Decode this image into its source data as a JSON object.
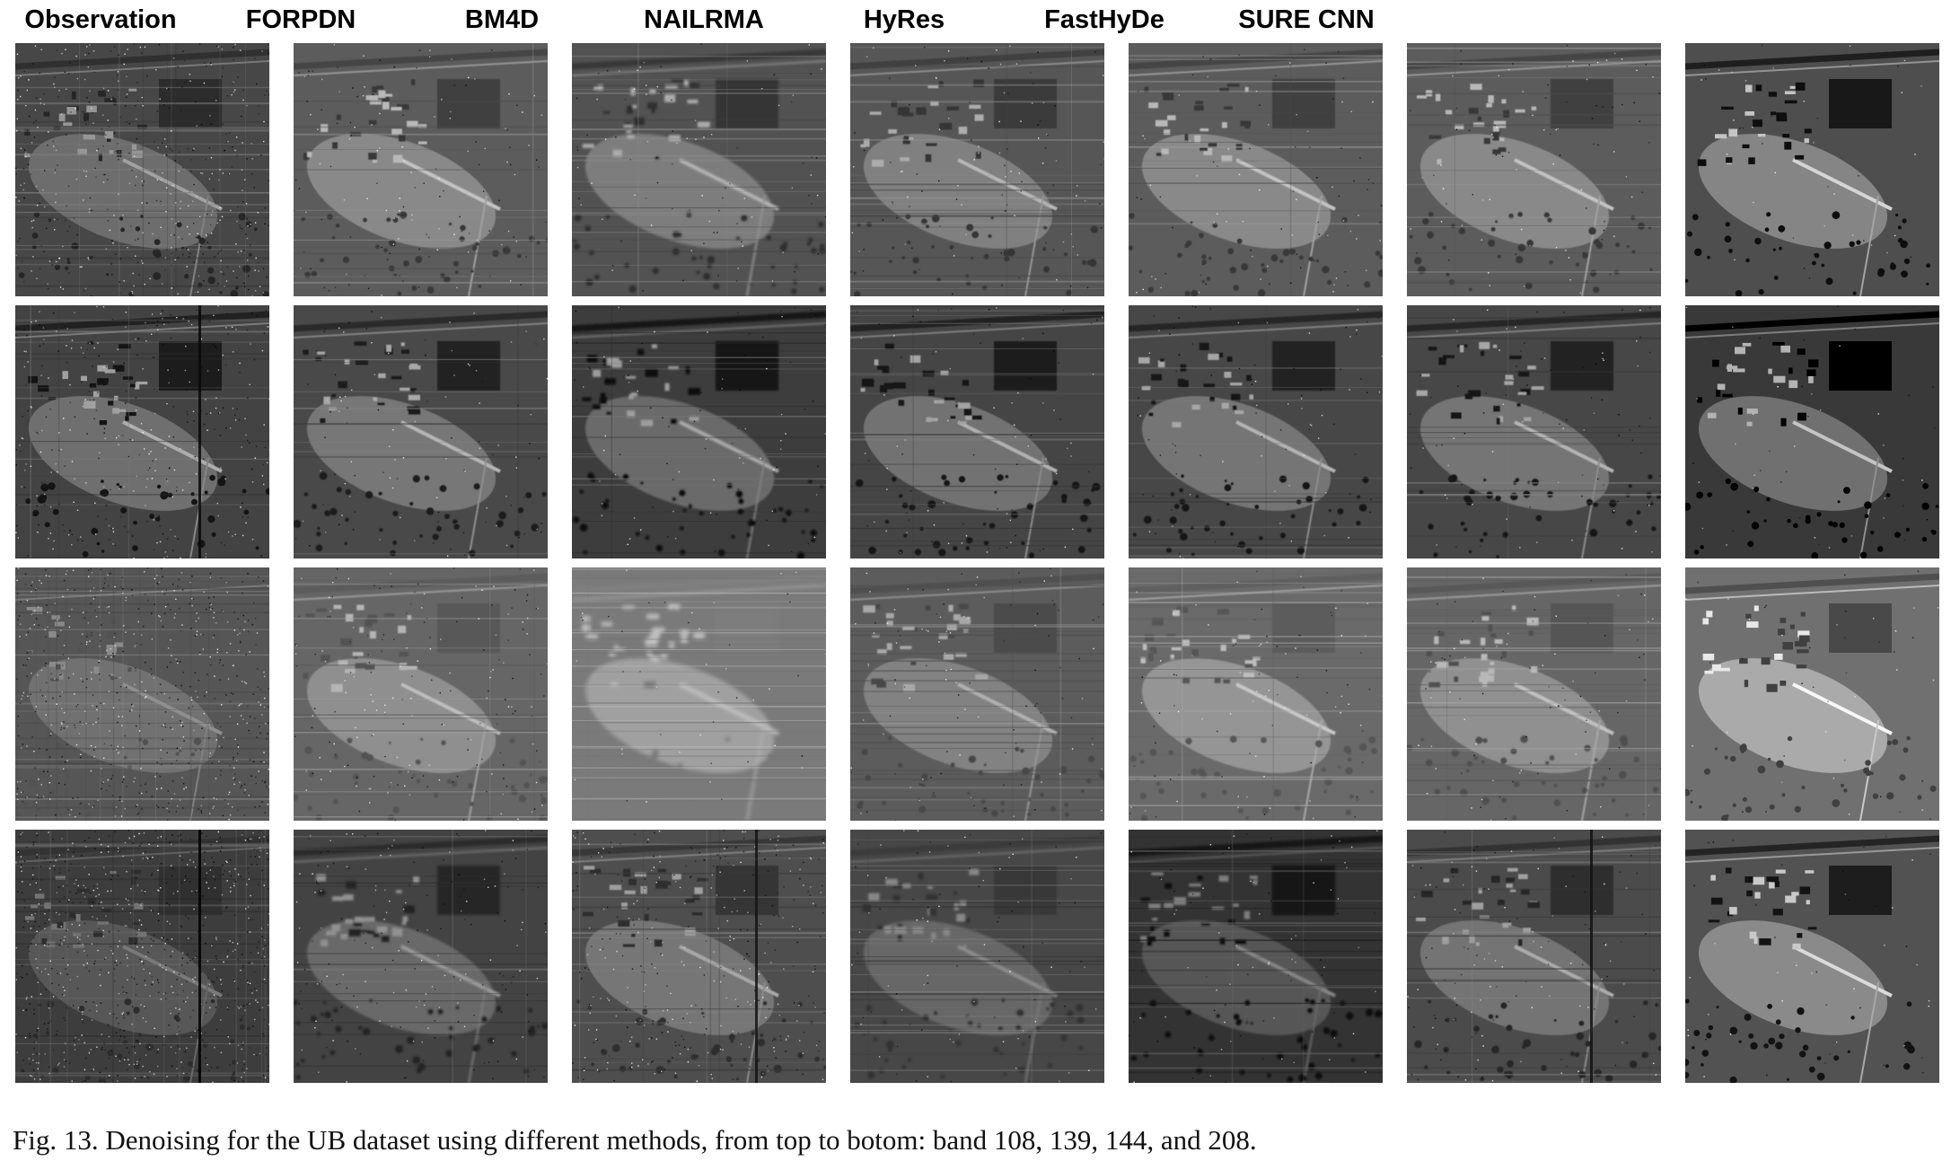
{
  "methods": [
    "Observation",
    "FORPDN",
    "BM4D",
    "NAILRMA",
    "HyRes",
    "FastHyDe",
    "SURE CNN"
  ],
  "caption": "Fig. 13.  Denoising for the UB dataset using different methods, from top to botom: band 108, 139, 144, and 208.",
  "tiles": [
    [
      {
        "brightness": 0.35,
        "contrast": 0.8,
        "noise": 0.55,
        "stripes": 0.5,
        "blur": 0,
        "dark_line": false
      },
      {
        "brightness": 0.45,
        "contrast": 0.9,
        "noise": 0.15,
        "stripes": 0.3,
        "blur": 0.3,
        "dark_line": false
      },
      {
        "brightness": 0.4,
        "contrast": 0.9,
        "noise": 0.1,
        "stripes": 0.5,
        "blur": 0.6,
        "dark_line": false
      },
      {
        "brightness": 0.42,
        "contrast": 0.85,
        "noise": 0.12,
        "stripes": 0.55,
        "blur": 0.3,
        "dark_line": false
      },
      {
        "brightness": 0.45,
        "contrast": 0.9,
        "noise": 0.1,
        "stripes": 0.35,
        "blur": 0.3,
        "dark_line": false
      },
      {
        "brightness": 0.45,
        "contrast": 0.9,
        "noise": 0.1,
        "stripes": 0.35,
        "blur": 0.3,
        "dark_line": false
      },
      {
        "brightness": 0.38,
        "contrast": 1.3,
        "noise": 0.05,
        "stripes": 0.0,
        "blur": 0,
        "dark_line": false
      }
    ],
    [
      {
        "brightness": 0.33,
        "contrast": 1.0,
        "noise": 0.4,
        "stripes": 0.3,
        "blur": 0,
        "dark_line": true
      },
      {
        "brightness": 0.36,
        "contrast": 1.0,
        "noise": 0.12,
        "stripes": 0.2,
        "blur": 0.3,
        "dark_line": false
      },
      {
        "brightness": 0.3,
        "contrast": 1.05,
        "noise": 0.1,
        "stripes": 0.4,
        "blur": 0.5,
        "dark_line": false
      },
      {
        "brightness": 0.34,
        "contrast": 1.0,
        "noise": 0.1,
        "stripes": 0.45,
        "blur": 0.3,
        "dark_line": false
      },
      {
        "brightness": 0.35,
        "contrast": 1.0,
        "noise": 0.1,
        "stripes": 0.3,
        "blur": 0.3,
        "dark_line": false
      },
      {
        "brightness": 0.35,
        "contrast": 1.0,
        "noise": 0.1,
        "stripes": 0.3,
        "blur": 0.3,
        "dark_line": false
      },
      {
        "brightness": 0.28,
        "contrast": 1.4,
        "noise": 0.05,
        "stripes": 0.0,
        "blur": 0,
        "dark_line": false
      }
    ],
    [
      {
        "brightness": 0.42,
        "contrast": 0.4,
        "noise": 0.75,
        "stripes": 0.6,
        "blur": 0,
        "dark_line": false
      },
      {
        "brightness": 0.5,
        "contrast": 0.7,
        "noise": 0.2,
        "stripes": 0.35,
        "blur": 0.4,
        "dark_line": false
      },
      {
        "brightness": 0.6,
        "contrast": 0.5,
        "noise": 0.05,
        "stripes": 0.8,
        "blur": 1.0,
        "dark_line": false
      },
      {
        "brightness": 0.45,
        "contrast": 0.7,
        "noise": 0.12,
        "stripes": 0.6,
        "blur": 0.35,
        "dark_line": false
      },
      {
        "brightness": 0.52,
        "contrast": 0.75,
        "noise": 0.1,
        "stripes": 0.5,
        "blur": 0.4,
        "dark_line": false
      },
      {
        "brightness": 0.5,
        "contrast": 0.75,
        "noise": 0.1,
        "stripes": 0.55,
        "blur": 0.4,
        "dark_line": false
      },
      {
        "brightness": 0.55,
        "contrast": 1.2,
        "noise": 0.05,
        "stripes": 0.0,
        "blur": 0,
        "dark_line": false
      }
    ],
    [
      {
        "brightness": 0.3,
        "contrast": 0.5,
        "noise": 0.95,
        "stripes": 0.4,
        "blur": 0,
        "dark_line": true
      },
      {
        "brightness": 0.33,
        "contrast": 0.8,
        "noise": 0.2,
        "stripes": 0.3,
        "blur": 0.6,
        "dark_line": false
      },
      {
        "brightness": 0.38,
        "contrast": 0.8,
        "noise": 0.4,
        "stripes": 0.4,
        "blur": 0.2,
        "dark_line": true
      },
      {
        "brightness": 0.35,
        "contrast": 0.6,
        "noise": 0.1,
        "stripes": 0.6,
        "blur": 0.6,
        "dark_line": false
      },
      {
        "brightness": 0.25,
        "contrast": 0.8,
        "noise": 0.1,
        "stripes": 0.55,
        "blur": 0.5,
        "dark_line": false
      },
      {
        "brightness": 0.37,
        "contrast": 0.85,
        "noise": 0.15,
        "stripes": 0.45,
        "blur": 0.3,
        "dark_line": true
      },
      {
        "brightness": 0.4,
        "contrast": 1.3,
        "noise": 0.05,
        "stripes": 0.0,
        "blur": 0,
        "dark_line": false
      }
    ]
  ]
}
